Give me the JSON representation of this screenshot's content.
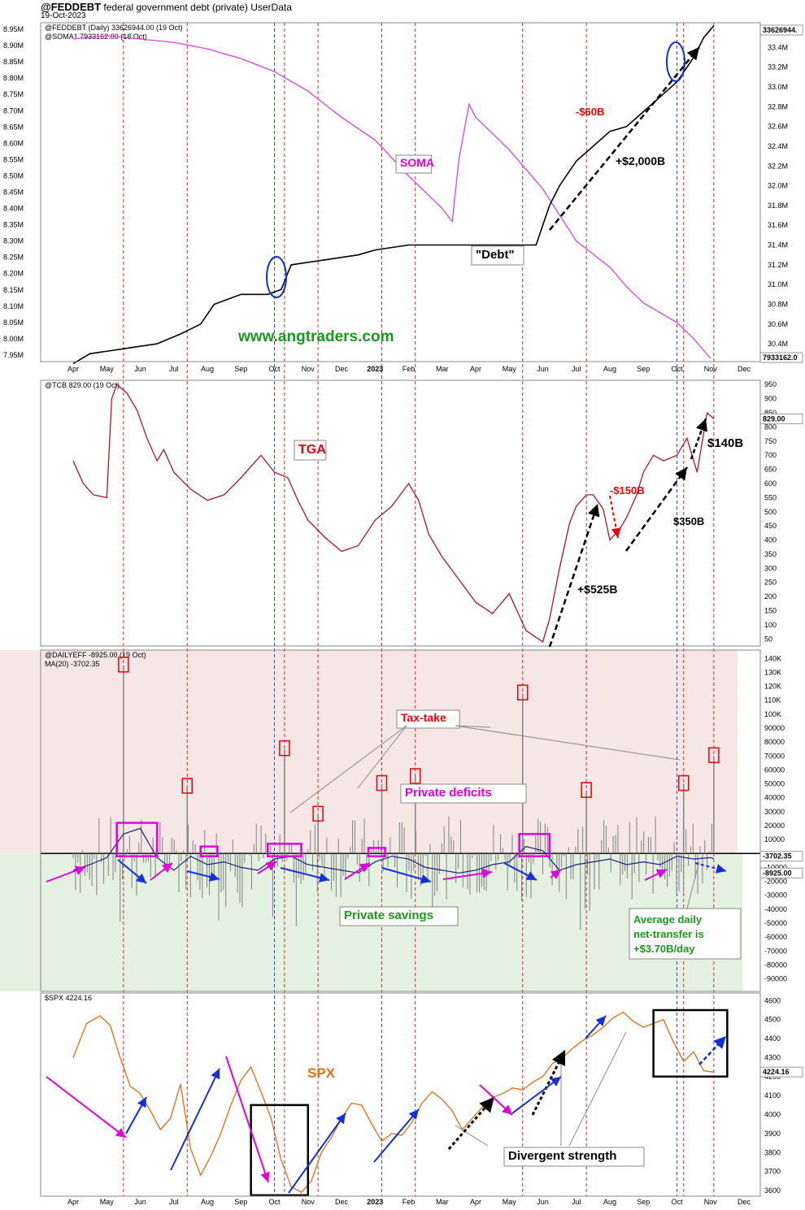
{
  "header": {
    "symbol": "@FEDDEBT",
    "description": "federal government debt (private)",
    "source": "UserData",
    "date": "19-Oct-2023"
  },
  "months": [
    "Apr",
    "May",
    "Jun",
    "Jul",
    "Aug",
    "Sep",
    "Oct",
    "Nov",
    "Dec",
    "2023",
    "Feb",
    "Mar",
    "Apr",
    "May",
    "Jun",
    "Jul",
    "Aug",
    "Sep",
    "Oct",
    "Nov",
    "Dec"
  ],
  "colors": {
    "debt": "#000000",
    "soma": "#e040e0",
    "tga": "#b5122d",
    "netflow": "#8a8a8a",
    "ma": "#1a237e",
    "spx": "#e86a10",
    "deficitBand": "#f7e6e6",
    "savingsBand": "#e4f1e1"
  },
  "chart_data": [
    {
      "type": "line",
      "legend": [
        "@FEDDEBT (Daily) 33626944.00 (19 Oct)",
        "@SOMA1 7933162.00 (18 Oct)"
      ],
      "left_axis_ticks": [
        "8.95M",
        "8.90M",
        "8.85M",
        "8.80M",
        "8.75M",
        "8.70M",
        "8.65M",
        "8.60M",
        "8.55M",
        "8.50M",
        "8.45M",
        "8.40M",
        "8.35M",
        "8.30M",
        "8.25M",
        "8.20M",
        "8.15M",
        "8.10M",
        "8.05M",
        "8.00M",
        "7.95M"
      ],
      "right_axis_ticks": [
        "33.4M",
        "33.2M",
        "33.0M",
        "32.8M",
        "32.6M",
        "32.4M",
        "32.2M",
        "32.0M",
        "31.8M",
        "31.6M",
        "31.4M",
        "31.2M",
        "31.0M",
        "30.8M",
        "30.6M",
        "30.4M"
      ],
      "right_last_label": "33626944.",
      "left_last_label": "7933162.0",
      "ylim_right": [
        30.22,
        33.65
      ],
      "ylim_left": [
        7.93,
        8.97
      ],
      "series": [
        {
          "name": "@FEDDEBT",
          "axis": "right",
          "x": [
            0,
            0.5,
            1.5,
            2.5,
            3.2,
            3.8,
            4.2,
            5,
            5.8,
            6.2,
            6.5,
            7.5,
            8.5,
            9,
            10,
            10.5,
            11,
            12,
            13,
            13.8,
            14,
            14.2,
            14.5,
            15,
            15.5,
            16,
            16.5,
            17,
            17.5,
            18,
            18.2,
            18.5,
            18.8,
            19.1
          ],
          "y": [
            30.2,
            30.3,
            30.35,
            30.4,
            30.5,
            30.6,
            30.8,
            30.9,
            30.9,
            30.95,
            31.2,
            31.25,
            31.3,
            31.35,
            31.4,
            31.4,
            31.4,
            31.4,
            31.4,
            31.4,
            31.6,
            31.8,
            32.0,
            32.25,
            32.4,
            32.55,
            32.6,
            32.75,
            32.9,
            33.05,
            33.15,
            33.3,
            33.5,
            33.62
          ]
        },
        {
          "name": "@SOMA1",
          "axis": "left",
          "x": [
            0,
            1,
            2,
            3,
            4,
            5,
            6,
            7,
            8,
            9,
            10,
            11,
            11.3,
            11.5,
            11.8,
            12,
            12.5,
            13,
            13.5,
            14,
            14.5,
            15,
            15.5,
            16,
            16.5,
            17,
            17.5,
            18,
            18.5,
            19
          ],
          "y": [
            8.92,
            8.93,
            8.92,
            8.91,
            8.89,
            8.86,
            8.82,
            8.76,
            8.68,
            8.61,
            8.5,
            8.4,
            8.36,
            8.55,
            8.72,
            8.68,
            8.63,
            8.58,
            8.52,
            8.46,
            8.38,
            8.3,
            8.26,
            8.22,
            8.16,
            8.11,
            8.08,
            8.05,
            8.0,
            7.94
          ]
        }
      ]
    },
    {
      "type": "line",
      "legend": [
        "@TCB 829.00 (19 Oct)"
      ],
      "right_axis_ticks": [
        "950",
        "900",
        "850",
        "800",
        "750",
        "700",
        "650",
        "600",
        "550",
        "500",
        "450",
        "400",
        "350",
        "300",
        "250",
        "200",
        "150",
        "100",
        "50"
      ],
      "right_last_label": "829.00",
      "ylim": [
        25,
        965
      ],
      "series": [
        {
          "name": "@TCB",
          "x": [
            0,
            0.3,
            0.6,
            1,
            1.15,
            1.3,
            1.6,
            1.9,
            2.2,
            2.5,
            2.7,
            3,
            3.5,
            4,
            4.5,
            5,
            5.3,
            5.6,
            6,
            6.4,
            6.7,
            7,
            7.5,
            8,
            8.5,
            9,
            9.5,
            10,
            10.3,
            10.6,
            11,
            11.5,
            12,
            12.5,
            13,
            13.5,
            14,
            14.2,
            14.5,
            14.8,
            15,
            15.3,
            15.5,
            15.8,
            16,
            16.3,
            16.5,
            16.8,
            17,
            17.3,
            17.6,
            18,
            18.3,
            18.6,
            18.9,
            19.1
          ],
          "y": [
            680,
            600,
            560,
            550,
            900,
            950,
            920,
            860,
            760,
            680,
            720,
            640,
            580,
            540,
            560,
            620,
            660,
            700,
            640,
            620,
            540,
            470,
            410,
            360,
            380,
            470,
            520,
            600,
            540,
            420,
            340,
            260,
            180,
            140,
            210,
            80,
            40,
            120,
            300,
            460,
            520,
            560,
            560,
            510,
            400,
            440,
            480,
            560,
            640,
            700,
            680,
            700,
            760,
            640,
            850,
            829
          ]
        }
      ]
    },
    {
      "type": "bar",
      "legend": [
        "@DAILYEFF -8925.00 (19 Oct)",
        "MA(20) -3702.35"
      ],
      "right_axis_ticks": [
        "140K",
        "130K",
        "120K",
        "110K",
        "100K",
        "90000",
        "80000",
        "70000",
        "60000",
        "50000",
        "40000",
        "30000",
        "20000",
        "10000",
        "0",
        "-10000",
        "-20000",
        "-30000",
        "-40000",
        "-50000",
        "-60000",
        "-70000",
        "-80000",
        "-90000"
      ],
      "right_last_labels": [
        "-3702.35",
        "-8925.00"
      ],
      "ylim": [
        -99000,
        146000
      ],
      "spikes": [
        {
          "x": 1.5,
          "value": 135000
        },
        {
          "x": 3.4,
          "value": 48000
        },
        {
          "x": 6.3,
          "value": 75000
        },
        {
          "x": 7.3,
          "value": 28000
        },
        {
          "x": 9.2,
          "value": 50000
        },
        {
          "x": 10.2,
          "value": 55000
        },
        {
          "x": 13.4,
          "value": 115000
        },
        {
          "x": 15.3,
          "value": 45000
        },
        {
          "x": 18.2,
          "value": 50000
        },
        {
          "x": 19.1,
          "value": 70000
        }
      ],
      "ma_series": {
        "name": "MA(20)",
        "x": [
          0,
          0.5,
          1,
          1.5,
          2,
          2.5,
          3,
          3.5,
          4,
          4.5,
          5,
          5.5,
          6,
          6.5,
          7,
          7.5,
          8,
          8.5,
          9,
          9.5,
          10,
          10.5,
          11,
          11.5,
          12,
          12.5,
          13,
          13.5,
          14,
          14.5,
          15,
          15.5,
          16,
          16.5,
          17,
          17.5,
          18,
          18.5,
          19,
          19.1
        ],
        "y": [
          -12000,
          -8000,
          -3000,
          14000,
          18000,
          -3000,
          -12000,
          -2000,
          -8000,
          -6000,
          -10000,
          -12000,
          -4000,
          -2000,
          -8000,
          -10000,
          -12000,
          -14000,
          -6000,
          -2000,
          -4000,
          -10000,
          -12000,
          -14000,
          -12000,
          -8000,
          -6000,
          5000,
          2000,
          -12000,
          -8000,
          -6000,
          -4000,
          -8000,
          -6000,
          -8000,
          -2000,
          -4000,
          -3000,
          -3702
        ]
      }
    },
    {
      "type": "line",
      "legend": [
        "$SPX 4224.16"
      ],
      "right_axis_ticks": [
        "4600",
        "4500",
        "4400",
        "4300",
        "4200",
        "4100",
        "4000",
        "3900",
        "3800",
        "3700",
        "3600"
      ],
      "right_last_label": "4224.16",
      "ylim": [
        3570,
        4640
      ],
      "series": [
        {
          "name": "$SPX",
          "x": [
            0,
            0.4,
            0.8,
            1.1,
            1.4,
            1.7,
            2,
            2.3,
            2.6,
            2.9,
            3.2,
            3.5,
            3.8,
            4.1,
            4.4,
            4.7,
            5,
            5.3,
            5.6,
            5.9,
            6.2,
            6.5,
            6.8,
            7.1,
            7.4,
            7.7,
            8,
            8.3,
            8.6,
            8.9,
            9.2,
            9.5,
            9.8,
            10.1,
            10.4,
            10.7,
            11,
            11.3,
            11.6,
            11.9,
            12.2,
            12.5,
            12.8,
            13.1,
            13.4,
            13.7,
            14,
            14.3,
            14.6,
            14.9,
            15.2,
            15.5,
            15.8,
            16.1,
            16.4,
            16.7,
            17,
            17.3,
            17.6,
            17.9,
            18.2,
            18.5,
            18.8,
            19.1
          ],
          "y": [
            4300,
            4480,
            4520,
            4470,
            4300,
            4150,
            4110,
            4020,
            3920,
            3980,
            4160,
            3820,
            3680,
            3780,
            3900,
            4050,
            4180,
            4250,
            4120,
            3980,
            3760,
            3620,
            3590,
            3650,
            3800,
            3880,
            3980,
            4060,
            4050,
            3950,
            3860,
            3900,
            3890,
            3960,
            4060,
            4120,
            4080,
            4020,
            3920,
            3980,
            4040,
            4090,
            4110,
            4140,
            4130,
            4170,
            4200,
            4270,
            4300,
            4350,
            4390,
            4420,
            4460,
            4510,
            4540,
            4490,
            4460,
            4480,
            4500,
            4380,
            4280,
            4330,
            4230,
            4224
          ]
        }
      ]
    }
  ],
  "annotations": {
    "site": "www.angtraders.com",
    "soma": "SOMA",
    "debt": "\"Debt\"",
    "debt_up": "+$2,000B",
    "debt_down": "-$60B",
    "tga": "TGA",
    "tga_140": "$140B",
    "tga_150": "-$150B",
    "tga_350": "$350B",
    "tga_525": "+$525B",
    "taxtake": "Tax-take",
    "private_deficits": "Private deficits",
    "private_savings": "Private savings",
    "avg_line1": "Average daily",
    "avg_line2": "net-transfer is",
    "avg_line3": "+$3.70B/day",
    "spx": "SPX",
    "divergent": "Divergent strength"
  }
}
